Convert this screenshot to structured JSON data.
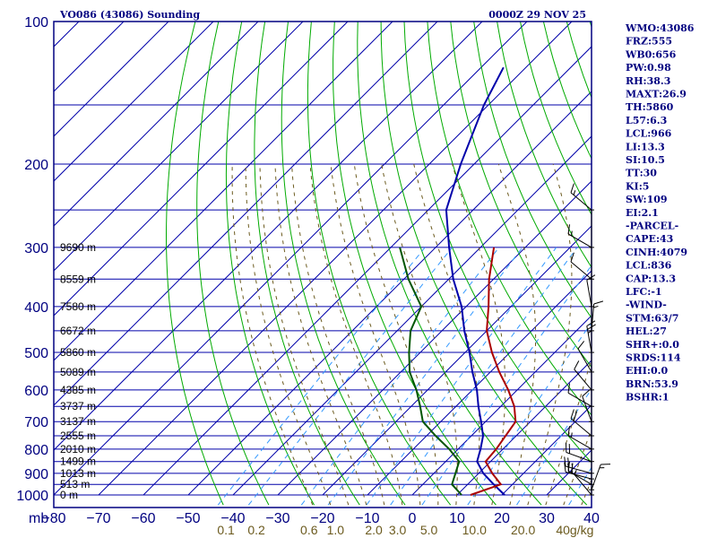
{
  "chart_data": {
    "type": "line",
    "title": "VO086 (43086) Sounding",
    "valid_time": "0000Z 29 NOV 25",
    "x_axis_unit": "mb",
    "xlim": [
      -80,
      40
    ],
    "ylim": [
      1000,
      100
    ],
    "y_scale": "log-pressure",
    "skew_note": "isotherms skewed 45 degrees",
    "pressure_ticks": [
      1000,
      900,
      800,
      700,
      600,
      500,
      400,
      300,
      200,
      100
    ],
    "temp_ticks": [
      -80,
      -70,
      -60,
      -50,
      -40,
      -30,
      -20,
      -10,
      0,
      10,
      20,
      30,
      40
    ],
    "temp_tick_labels": [
      "−80",
      "−70",
      "−60",
      "−50",
      "−40",
      "−30",
      "−20",
      "−10",
      "0",
      "10",
      "20",
      "30",
      "40"
    ],
    "mixing_ratio_labels": [
      {
        "w": 0.1,
        "label": "0.1"
      },
      {
        "w": 0.2,
        "label": "0.2"
      },
      {
        "w": 0.6,
        "label": "0.6"
      },
      {
        "w": 1.0,
        "label": "1.0"
      },
      {
        "w": 2.0,
        "label": "2.0"
      },
      {
        "w": 3.0,
        "label": "3.0"
      },
      {
        "w": 5.0,
        "label": "5.0"
      },
      {
        "w": 10.0,
        "label": "10.0"
      },
      {
        "w": 20.0,
        "label": "20.0"
      },
      {
        "w": 40.0,
        "label": "40g/kg"
      }
    ],
    "height_labels": [
      {
        "p": 1000,
        "label": "0 m"
      },
      {
        "p": 950,
        "label": "513 m"
      },
      {
        "p": 900,
        "label": "1013 m"
      },
      {
        "p": 850,
        "label": "1499 m"
      },
      {
        "p": 800,
        "label": "2010 m"
      },
      {
        "p": 750,
        "label": "2555 m"
      },
      {
        "p": 700,
        "label": "3137 m"
      },
      {
        "p": 650,
        "label": "3737 m"
      },
      {
        "p": 600,
        "label": "4385 m"
      },
      {
        "p": 550,
        "label": "5089 m"
      },
      {
        "p": 500,
        "label": "5860 m"
      },
      {
        "p": 450,
        "label": "6672 m"
      },
      {
        "p": 400,
        "label": "7580 m"
      },
      {
        "p": 350,
        "label": "8559 m"
      },
      {
        "p": 300,
        "label": "9690 m"
      }
    ],
    "series": [
      {
        "color": "#0000aa",
        "points": [
          [
            1000,
            20.6
          ],
          [
            950,
            15.8
          ],
          [
            900,
            11.0
          ],
          [
            850,
            7.0
          ],
          [
            800,
            5.0
          ],
          [
            750,
            2.6
          ],
          [
            700,
            -1.0
          ],
          [
            650,
            -5.0
          ],
          [
            600,
            -9.0
          ],
          [
            550,
            -14.0
          ],
          [
            500,
            -19.0
          ],
          [
            450,
            -25.0
          ],
          [
            400,
            -31.0
          ],
          [
            350,
            -39.0
          ],
          [
            300,
            -47.0
          ],
          [
            250,
            -56.0
          ],
          [
            200,
            -63.0
          ],
          [
            150,
            -71.0
          ],
          [
            125,
            -75.0
          ]
        ]
      },
      {
        "color": "#aa0000",
        "points": [
          [
            1000,
            13.0
          ],
          [
            950,
            17.4
          ],
          [
            900,
            13.0
          ],
          [
            850,
            8.9
          ],
          [
            800,
            8.5
          ],
          [
            700,
            6.7
          ],
          [
            650,
            3.0
          ],
          [
            600,
            -2.0
          ],
          [
            550,
            -8.0
          ],
          [
            500,
            -14.0
          ],
          [
            450,
            -20.0
          ],
          [
            400,
            -25.0
          ],
          [
            350,
            -31.0
          ],
          [
            300,
            -37.0
          ]
        ]
      },
      {
        "color": "#005500",
        "points": [
          [
            1000,
            11.0
          ],
          [
            950,
            6.5
          ],
          [
            900,
            4.8
          ],
          [
            850,
            3.0
          ],
          [
            800,
            -2.0
          ],
          [
            750,
            -8.0
          ],
          [
            700,
            -14.0
          ],
          [
            650,
            -18.0
          ],
          [
            600,
            -22.5
          ],
          [
            550,
            -28.0
          ],
          [
            500,
            -32.5
          ],
          [
            450,
            -37.0
          ],
          [
            400,
            -40.0
          ],
          [
            350,
            -49.0
          ],
          [
            300,
            -58.0
          ]
        ]
      }
    ],
    "wind_barbs": [
      {
        "p": 1000,
        "dir": 320,
        "spd": 5
      },
      {
        "p": 975,
        "dir": 20,
        "spd": 15
      },
      {
        "p": 950,
        "dir": 300,
        "spd": 20
      },
      {
        "p": 925,
        "dir": 285,
        "spd": 25
      },
      {
        "p": 900,
        "dir": 285,
        "spd": 25
      },
      {
        "p": 850,
        "dir": 290,
        "spd": 20
      },
      {
        "p": 800,
        "dir": 300,
        "spd": 15
      },
      {
        "p": 750,
        "dir": 310,
        "spd": 20
      },
      {
        "p": 700,
        "dir": 340,
        "spd": 10
      },
      {
        "p": 650,
        "dir": 300,
        "spd": 10
      },
      {
        "p": 600,
        "dir": 320,
        "spd": 10
      },
      {
        "p": 550,
        "dir": 330,
        "spd": 10
      },
      {
        "p": 500,
        "dir": 350,
        "spd": 25
      },
      {
        "p": 450,
        "dir": 5,
        "spd": 15
      },
      {
        "p": 400,
        "dir": 350,
        "spd": 10
      },
      {
        "p": 350,
        "dir": 310,
        "spd": 10
      },
      {
        "p": 300,
        "dir": 300,
        "spd": 15
      },
      {
        "p": 250,
        "dir": 310,
        "spd": 15
      }
    ]
  },
  "indices": [
    "WMO:43086",
    "FRZ:555",
    "WB0:656",
    "PW:0.98",
    "RH:38.3",
    "MAXT:26.9",
    "TH:5860",
    "L57:6.3",
    "LCL:966",
    "LI:13.3",
    "SI:10.5",
    "TT:30",
    "KI:5",
    "SW:109",
    "EI:2.1",
    "-PARCEL-",
    "CAPE:43",
    "CINH:4079",
    "LCL:836",
    "CAP:13.3",
    "LFC:-1",
    "-WIND-",
    "STM:63/7",
    "HEL:27",
    "SHR+:0.0",
    "SRDS:114",
    "EHI:0.0",
    "BRN:53.9",
    "BSHR:1"
  ],
  "colors": {
    "frame": "#000080",
    "grid": "#0000aa",
    "dry_adiabat": "#00aa00",
    "moist_adiabat": "#6b5a1e",
    "mixing_ratio": "#3399ff"
  }
}
